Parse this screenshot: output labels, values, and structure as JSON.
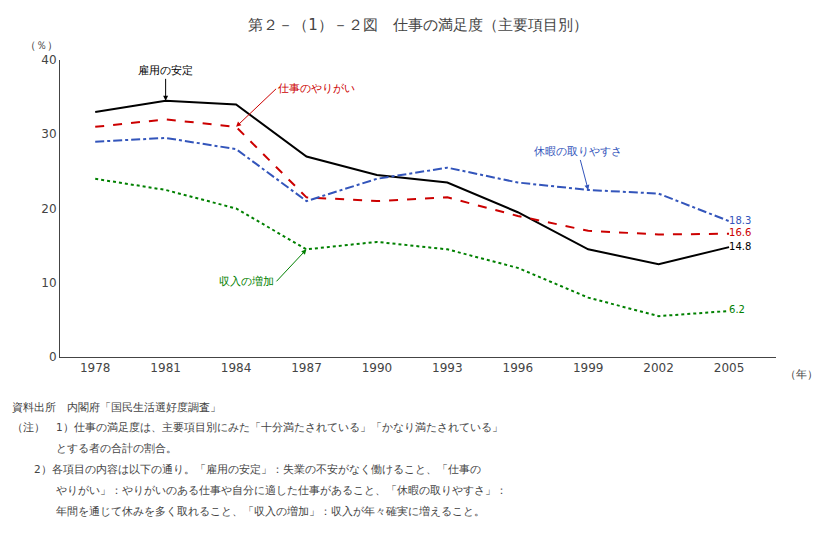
{
  "chart_data": {
    "type": "line",
    "title": "第２－（1）－２図　仕事の満足度（主要項目別）",
    "xlabel": "（年）",
    "ylabel": "（％）",
    "x": [
      1978,
      1981,
      1984,
      1987,
      1990,
      1993,
      1996,
      1999,
      2002,
      2005
    ],
    "series": [
      {
        "name": "雇用の安定",
        "color": "#000000",
        "line_style": "solid",
        "values": [
          33.0,
          34.5,
          34.0,
          27.0,
          24.5,
          23.5,
          19.5,
          14.5,
          12.5,
          14.8
        ],
        "value_labels": [
          null,
          null,
          null,
          null,
          null,
          null,
          null,
          null,
          null,
          "14.8"
        ]
      },
      {
        "name": "仕事のやりがい",
        "color": "#cc0000",
        "line_style": "dash",
        "values": [
          31.0,
          32.0,
          31.0,
          21.5,
          21.0,
          21.5,
          19.0,
          17.0,
          16.5,
          16.6
        ],
        "value_labels": [
          null,
          null,
          null,
          null,
          null,
          null,
          null,
          null,
          null,
          "16.6"
        ]
      },
      {
        "name": "休暇の取りやすさ",
        "color": "#3355bb",
        "line_style": "dashdot",
        "values": [
          29.0,
          29.5,
          28.0,
          21.0,
          24.0,
          25.5,
          23.5,
          22.5,
          22.0,
          18.3
        ],
        "value_labels": [
          null,
          null,
          null,
          null,
          null,
          null,
          null,
          null,
          null,
          "18.3"
        ]
      },
      {
        "name": "収入の増加",
        "color": "#008000",
        "line_style": "dot",
        "values": [
          24.0,
          22.5,
          20.0,
          14.5,
          15.5,
          14.5,
          12.0,
          8.0,
          5.5,
          6.2
        ],
        "value_labels": [
          null,
          null,
          null,
          null,
          null,
          null,
          null,
          null,
          null,
          "6.2"
        ]
      }
    ],
    "xlim": [
      1976.5,
      2007
    ],
    "xticks": [
      1978,
      1981,
      1984,
      1987,
      1990,
      1993,
      1996,
      1999,
      2002,
      2005
    ],
    "ylim": [
      0,
      40
    ],
    "yticks": [
      0,
      10,
      20,
      30,
      40
    ],
    "grid": false,
    "notes": [
      "資料出所　内閣府「国民生活選好度調査」",
      "（注）　1）仕事の満足度は、主要項目別にみた「十分満たされている」「かなり満たされている」",
      "　　　　とする者の合計の割合。",
      "　　2）各項目の内容は以下の通り。「雇用の安定」：失業の不安がなく働けること、「仕事の",
      "　　　　やりがい」：やりがいのある仕事や自分に適した仕事があること、「休暇の取りやすさ」：",
      "　　　　年間を通じて休みを多く取れること、「収入の増加」：収入が年々確実に増えること。"
    ]
  }
}
